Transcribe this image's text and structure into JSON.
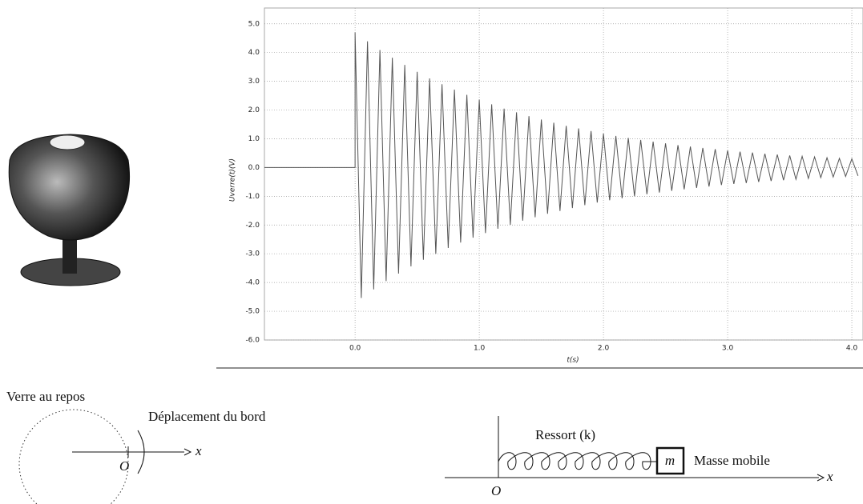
{
  "chart_data": {
    "type": "line",
    "xlabel": "t(s)",
    "ylabel": "Uverre(t)(V)",
    "x": [
      -0.73,
      0,
      0,
      0.05,
      0.1,
      0.15,
      0.2,
      0.25,
      0.3,
      0.35,
      0.4,
      0.45,
      0.5,
      0.55,
      0.6,
      0.65,
      0.7,
      0.75,
      0.8,
      0.85,
      0.9,
      0.95,
      1,
      1.05,
      1.1,
      1.15,
      1.2,
      1.25,
      1.3,
      1.35,
      1.4,
      1.45,
      1.5,
      1.55,
      1.6,
      1.65,
      1.7,
      1.75,
      1.8,
      1.85,
      1.9,
      1.95,
      2,
      2.05,
      2.1,
      2.15,
      2.2,
      2.25,
      2.3,
      2.35,
      2.4,
      2.45,
      2.5,
      2.55,
      2.6,
      2.65,
      2.7,
      2.75,
      2.8,
      2.85,
      2.9,
      2.95,
      3,
      3.05,
      3.1,
      3.15,
      3.2,
      3.25,
      3.3,
      3.35,
      3.4,
      3.45,
      3.5,
      3.55,
      3.6,
      3.65,
      3.7,
      3.75,
      3.8,
      3.85,
      3.9,
      3.95,
      4,
      4.05
    ],
    "series": [
      {
        "color": "#555555",
        "values": [
          0,
          0,
          4.7,
          -4.54,
          4.39,
          -4.24,
          4.09,
          -3.95,
          3.82,
          -3.69,
          3.57,
          -3.44,
          3.33,
          -3.21,
          3.1,
          -3.0,
          2.9,
          -2.8,
          2.71,
          -2.61,
          2.53,
          -2.44,
          2.36,
          -2.28,
          2.2,
          -2.13,
          2.05,
          -1.99,
          1.92,
          -1.85,
          1.79,
          -1.73,
          1.67,
          -1.61,
          1.56,
          -1.51,
          1.45,
          -1.41,
          1.36,
          -1.31,
          1.27,
          -1.22,
          1.18,
          -1.14,
          1.1,
          -1.07,
          1.03,
          -1.0,
          0.96,
          -0.93,
          0.9,
          -0.87,
          0.84,
          -0.81,
          0.78,
          -0.76,
          0.73,
          -0.71,
          0.68,
          -0.66,
          0.64,
          -0.61,
          0.59,
          -0.57,
          0.55,
          -0.54,
          0.52,
          -0.5,
          0.48,
          -0.47,
          0.45,
          -0.44,
          0.42,
          -0.41,
          0.39,
          -0.38,
          0.37,
          -0.35,
          0.34,
          -0.33,
          0.32,
          -0.31,
          0.3,
          -0.29
        ]
      }
    ],
    "xlim": [
      -0.73,
      4.09
    ],
    "ylim": [
      -6.0,
      5.55
    ],
    "xticks": [
      {
        "value": 0,
        "label": "0.0"
      },
      {
        "value": 1,
        "label": "1.0"
      },
      {
        "value": 2,
        "label": "2.0"
      },
      {
        "value": 3,
        "label": "3.0"
      },
      {
        "value": 4,
        "label": "4.0"
      }
    ],
    "yticks": [
      {
        "value": 5,
        "label": "5.0"
      },
      {
        "value": 4,
        "label": "4.0"
      },
      {
        "value": 3,
        "label": "3.0"
      },
      {
        "value": 2,
        "label": "2.0"
      },
      {
        "value": 1,
        "label": "1.0"
      },
      {
        "value": 0,
        "label": "0.0"
      },
      {
        "value": -1,
        "label": "-1.0"
      },
      {
        "value": -2,
        "label": "-2.0"
      },
      {
        "value": -3,
        "label": "-3.0"
      },
      {
        "value": -4,
        "label": "-4.0"
      },
      {
        "value": -5,
        "label": "-5.0"
      },
      {
        "value": -6,
        "label": "-6.0"
      }
    ],
    "grid": true
  },
  "glass_diagram": {
    "title": "Verre au repos",
    "caption": "Déplacement du bord",
    "axis": "x",
    "origin": "O"
  },
  "spring_diagram": {
    "spring": "Ressort (k)",
    "mass": "m",
    "mass_label": "Masse mobile",
    "axis": "x",
    "origin": "O"
  }
}
